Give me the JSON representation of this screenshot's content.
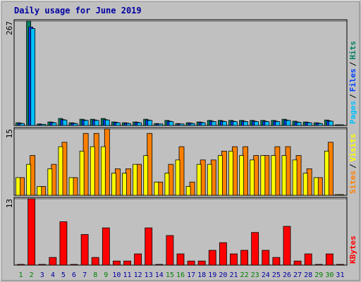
{
  "title": "Daily usage for June 2019",
  "legend_separator": "/",
  "chart_data": [
    {
      "type": "bar",
      "ylim": [
        0,
        267
      ],
      "yticks": [
        267
      ],
      "series": [
        {
          "name": "Hits",
          "color": "#008060",
          "values": [
            7,
            267,
            4,
            9,
            18,
            7,
            16,
            16,
            18,
            9,
            7,
            9,
            16,
            5,
            13,
            5,
            7,
            9,
            13,
            13,
            13,
            13,
            13,
            13,
            13,
            16,
            11,
            9,
            7,
            14,
            0
          ]
        },
        {
          "name": "Files",
          "color": "#0040ff",
          "values": [
            6,
            252,
            3,
            8,
            15,
            6,
            14,
            14,
            15,
            8,
            6,
            8,
            14,
            4,
            11,
            4,
            6,
            8,
            11,
            11,
            11,
            11,
            11,
            11,
            11,
            14,
            9,
            8,
            6,
            12,
            0
          ]
        },
        {
          "name": "Pages",
          "color": "#00c0ff",
          "values": [
            5,
            248,
            3,
            7,
            14,
            5,
            13,
            13,
            14,
            7,
            5,
            7,
            13,
            4,
            10,
            4,
            5,
            7,
            10,
            10,
            10,
            10,
            10,
            10,
            10,
            13,
            8,
            7,
            5,
            11,
            0
          ]
        }
      ]
    },
    {
      "type": "bar",
      "ylim": [
        0,
        15
      ],
      "yticks": [
        15
      ],
      "series": [
        {
          "name": "Visits",
          "color": "#ffff00",
          "values": [
            4,
            7,
            2,
            6,
            11,
            4,
            10,
            11,
            11,
            5,
            5,
            7,
            9,
            3,
            5,
            8,
            2,
            7,
            7,
            9,
            10,
            9,
            8,
            9,
            9,
            9,
            8,
            5,
            4,
            10,
            0
          ]
        },
        {
          "name": "Sites",
          "color": "#ff8000",
          "values": [
            4,
            9,
            2,
            7,
            12,
            4,
            14,
            14,
            15,
            6,
            6,
            7,
            14,
            3,
            7,
            11,
            3,
            8,
            8,
            10,
            11,
            11,
            9,
            9,
            11,
            11,
            9,
            6,
            4,
            12,
            0
          ]
        }
      ]
    },
    {
      "type": "bar",
      "ylim": [
        0,
        13
      ],
      "yticks": [
        13
      ],
      "categories": [
        "1",
        "2",
        "3",
        "4",
        "5",
        "6",
        "7",
        "8",
        "9",
        "10",
        "11",
        "12",
        "13",
        "14",
        "15",
        "16",
        "17",
        "18",
        "19",
        "20",
        "21",
        "22",
        "23",
        "24",
        "25",
        "26",
        "27",
        "28",
        "29",
        "30",
        "31"
      ],
      "category_colors": [
        "#008000",
        "#008000",
        "#0000a0",
        "#0000a0",
        "#0000a0",
        "#0000a0",
        "#0000a0",
        "#008000",
        "#008000",
        "#0000a0",
        "#0000a0",
        "#0000a0",
        "#0000a0",
        "#0000a0",
        "#008000",
        "#008000",
        "#0000a0",
        "#0000a0",
        "#0000a0",
        "#0000a0",
        "#0000a0",
        "#008000",
        "#008000",
        "#0000a0",
        "#0000a0",
        "#0000a0",
        "#0000a0",
        "#0000a0",
        "#008000",
        "#008000",
        "#0000a0"
      ],
      "series": [
        {
          "name": "KBytes",
          "color": "#ff0000",
          "values": [
            0,
            13,
            0,
            1.5,
            8.5,
            0,
            6,
            1.5,
            7.3,
            0.8,
            0.8,
            2.2,
            7.3,
            0,
            5.8,
            2.2,
            0.8,
            0.8,
            2.9,
            4.4,
            2.2,
            2.9,
            6.4,
            2.9,
            1.5,
            7.6,
            0.8,
            2.2,
            0,
            2.2,
            0
          ]
        }
      ]
    }
  ]
}
